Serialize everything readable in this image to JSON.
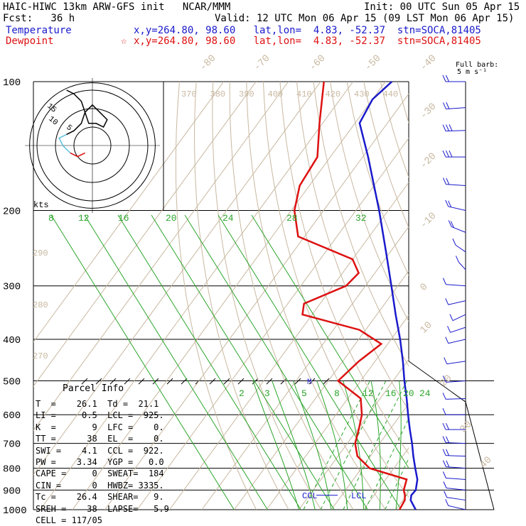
{
  "header": {
    "line1_left": "HAIC-HIWC 13km ARW-GFS init   NCAR/MMM",
    "line1_right": "Init: 00 UTC Sun 05 Apr 15",
    "line2_left": "Fcst:   36 h",
    "line2_right": "Valid: 12 UTC Mon 06 Apr 15 (09 LST Mon 06 Apr 15)",
    "temperature_label": "Temperature",
    "temperature_info": "x,y=264.80, 98.60   lat,lon=  4.83, -52.37  stn=SOCA,81405",
    "dewpoint_label": "Dewpoint",
    "dewpoint_info": "x,y=264.80, 98.60   lat,lon=  4.83, -52.37  stn=SOCA,81405",
    "dewpoint_star": "☆"
  },
  "barb_legend": {
    "line1": "Full barb:",
    "line2": "5 m s⁻¹"
  },
  "colors": {
    "temperature": "#1a1acc",
    "dewpoint": "#dd1111",
    "isotherm": "#c8b8a0",
    "mixing_ratio": "#2aa52a",
    "moist_adiabat": "#2aa52a",
    "dry_adiabat": "#c8b8a0",
    "hodograph_low": "#5bc0de",
    "grid": "#000000",
    "text": "#000000"
  },
  "parcel_info": {
    "title": "Parcel Info",
    "lines": [
      "T  =    26.1  Td =  21.1",
      "LI =     0.5  LCL =  925.",
      "K  =       9  LFC =    0.",
      "TT =      38  EL  =    0.",
      "SWI =    4.1  CCL =  922.",
      "PW =    3.34  YGP =   0.0",
      "CAPE =     0  SWEAT=  184",
      "CIN =      0  HWBZ= 3335.",
      "Tc =    26.4  SHEAR=   9.",
      "SREH =    38  LAPSE=   5.9",
      "CELL = 117/05"
    ]
  },
  "chart_data": {
    "type": "line",
    "title": "",
    "xlabel": "",
    "ylabel": "",
    "pressure_axis": {
      "scale": "log",
      "ylim": [
        1000,
        100
      ],
      "tick_labels": [
        "100",
        "200",
        "300",
        "400",
        "500",
        "600",
        "700",
        "800",
        "900",
        "1000"
      ]
    },
    "isotherm_labels_top": [
      "-80",
      "-70",
      "-60",
      "-50",
      "-40"
    ],
    "isotherm_labels_right": [
      "-30",
      "-20",
      "-10",
      "0",
      "10",
      "20",
      "30",
      "40"
    ],
    "theta_labels": [
      "370",
      "380",
      "390",
      "400",
      "410",
      "420",
      "430",
      "440"
    ],
    "theta_labels_left": [
      "290",
      "280",
      "270"
    ],
    "mixing_ratio_labels_upper": [
      "8",
      "12",
      "16",
      "20",
      "24",
      "28",
      "32"
    ],
    "mixing_ratio_labels_lower": [
      "2",
      "3",
      "5",
      "8",
      "12",
      "16",
      "20",
      "24"
    ],
    "annotations": [
      "CCL",
      "LCL",
      "M"
    ],
    "series": [
      {
        "name": "Temperature",
        "points": [
          {
            "p": 1000,
            "t": 26.1
          },
          {
            "p": 950,
            "t": 22.4
          },
          {
            "p": 925,
            "t": 21.5
          },
          {
            "p": 900,
            "t": 21.7
          },
          {
            "p": 850,
            "t": 19.8
          },
          {
            "p": 800,
            "t": 16.6
          },
          {
            "p": 750,
            "t": 13.3
          },
          {
            "p": 700,
            "t": 10.0
          },
          {
            "p": 650,
            "t": 6.2
          },
          {
            "p": 600,
            "t": 2.3
          },
          {
            "p": 550,
            "t": -1.8
          },
          {
            "p": 500,
            "t": -6.5
          },
          {
            "p": 450,
            "t": -11.4
          },
          {
            "p": 400,
            "t": -17.2
          },
          {
            "p": 350,
            "t": -24.2
          },
          {
            "p": 300,
            "t": -32.0
          },
          {
            "p": 250,
            "t": -41.3
          },
          {
            "p": 200,
            "t": -52.8
          },
          {
            "p": 175,
            "t": -60.0
          },
          {
            "p": 150,
            "t": -68.3
          },
          {
            "p": 125,
            "t": -78.6
          },
          {
            "p": 110,
            "t": -80.0
          },
          {
            "p": 100,
            "t": -78.0
          }
        ]
      },
      {
        "name": "Dewpoint",
        "points": [
          {
            "p": 1000,
            "t": 21.1
          },
          {
            "p": 950,
            "t": 20.6
          },
          {
            "p": 925,
            "t": 19.5
          },
          {
            "p": 900,
            "t": 18.0
          },
          {
            "p": 850,
            "t": 16.5
          },
          {
            "p": 800,
            "t": 2.5
          },
          {
            "p": 750,
            "t": -4.0
          },
          {
            "p": 700,
            "t": -7.6
          },
          {
            "p": 650,
            "t": -9.6
          },
          {
            "p": 600,
            "t": -12.0
          },
          {
            "p": 550,
            "t": -16.0
          },
          {
            "p": 500,
            "t": -27.0
          },
          {
            "p": 450,
            "t": -25.0
          },
          {
            "p": 410,
            "t": -22.0
          },
          {
            "p": 380,
            "t": -32.0
          },
          {
            "p": 350,
            "t": -53.0
          },
          {
            "p": 330,
            "t": -55.0
          },
          {
            "p": 300,
            "t": -46.0
          },
          {
            "p": 280,
            "t": -45.0
          },
          {
            "p": 260,
            "t": -50.0
          },
          {
            "p": 230,
            "t": -72.0
          },
          {
            "p": 200,
            "t": -79.0
          },
          {
            "p": 175,
            "t": -83.0
          },
          {
            "p": 150,
            "t": -84.0
          },
          {
            "p": 125,
            "t": -91.0
          },
          {
            "p": 100,
            "t": -99.0
          }
        ]
      }
    ],
    "wind_barbs": [
      {
        "p": 100,
        "dir": 90,
        "speed": 10
      },
      {
        "p": 115,
        "dir": 100,
        "speed": 12
      },
      {
        "p": 130,
        "dir": 95,
        "speed": 15
      },
      {
        "p": 150,
        "dir": 90,
        "speed": 15
      },
      {
        "p": 175,
        "dir": 80,
        "speed": 12
      },
      {
        "p": 200,
        "dir": 60,
        "speed": 10
      },
      {
        "p": 225,
        "dir": 45,
        "speed": 8
      },
      {
        "p": 250,
        "dir": 30,
        "speed": 6
      },
      {
        "p": 275,
        "dir": 20,
        "speed": 5
      },
      {
        "p": 300,
        "dir": 80,
        "speed": 4
      },
      {
        "p": 325,
        "dir": 120,
        "speed": 4
      },
      {
        "p": 350,
        "dir": 140,
        "speed": 5
      },
      {
        "p": 375,
        "dir": 130,
        "speed": 5
      },
      {
        "p": 400,
        "dir": 120,
        "speed": 5
      },
      {
        "p": 450,
        "dir": 110,
        "speed": 5
      },
      {
        "p": 500,
        "dir": 100,
        "speed": 5
      },
      {
        "p": 550,
        "dir": 95,
        "speed": 6
      },
      {
        "p": 600,
        "dir": 90,
        "speed": 7
      },
      {
        "p": 650,
        "dir": 90,
        "speed": 8
      },
      {
        "p": 700,
        "dir": 85,
        "speed": 9
      },
      {
        "p": 750,
        "dir": 85,
        "speed": 9
      },
      {
        "p": 800,
        "dir": 80,
        "speed": 8
      },
      {
        "p": 850,
        "dir": 80,
        "speed": 7
      },
      {
        "p": 900,
        "dir": 75,
        "speed": 6
      },
      {
        "p": 950,
        "dir": 70,
        "speed": 4
      },
      {
        "p": 1000,
        "dir": 60,
        "speed": 2
      }
    ],
    "hodograph": {
      "units_label": "kts",
      "ring_labels": [
        "5",
        "10",
        "15"
      ],
      "points": [
        {
          "u": -2,
          "v": -2
        },
        {
          "u": -4,
          "v": -3
        },
        {
          "u": -6,
          "v": -2
        },
        {
          "u": -8,
          "v": 0
        },
        {
          "u": -9,
          "v": 2
        },
        {
          "u": -7,
          "v": 3
        },
        {
          "u": -5,
          "v": 4
        },
        {
          "u": -3,
          "v": 6
        },
        {
          "u": -2,
          "v": 9
        },
        {
          "u": 0,
          "v": 11
        },
        {
          "u": 2,
          "v": 9
        },
        {
          "u": 4,
          "v": 7
        },
        {
          "u": 3,
          "v": 5
        },
        {
          "u": 1,
          "v": 6
        },
        {
          "u": -1,
          "v": 6
        },
        {
          "u": -3,
          "v": 12
        },
        {
          "u": -5,
          "v": 14
        },
        {
          "u": -7,
          "v": 15
        }
      ]
    }
  }
}
